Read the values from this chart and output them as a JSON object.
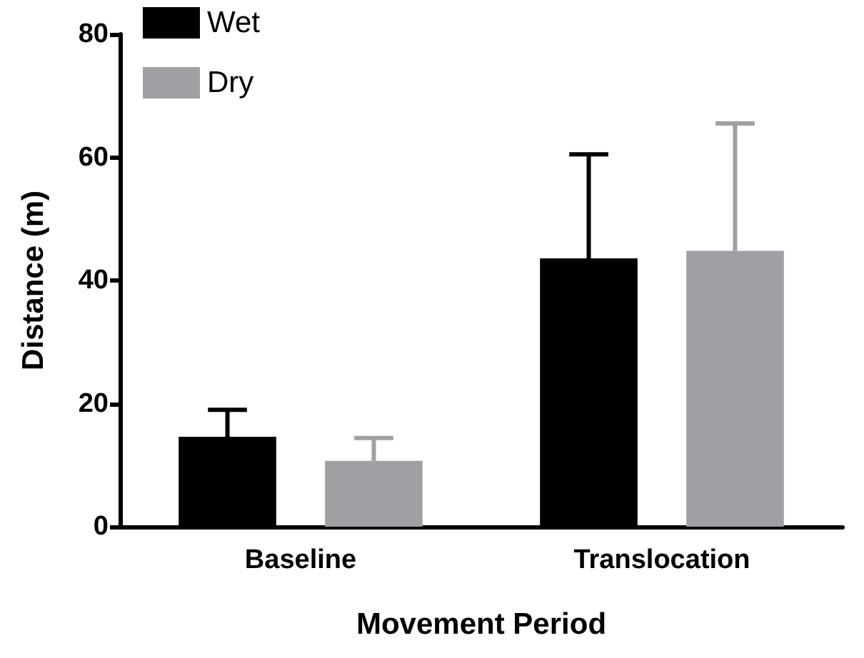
{
  "chart_data": {
    "type": "bar",
    "xlabel": "Movement Period",
    "ylabel": "Distance (m)",
    "categories": [
      "Baseline",
      "Translocation"
    ],
    "series": [
      {
        "name": "Wet",
        "color": "#000000",
        "values": [
          14.6,
          43.6
        ],
        "errors": [
          [
            14.6,
            19.0
          ],
          [
            43.6,
            60.5
          ]
        ]
      },
      {
        "name": "Dry",
        "color": "#a0a0a4",
        "values": [
          10.7,
          44.8
        ],
        "errors": [
          [
            10.7,
            14.4
          ],
          [
            44.8,
            65.5
          ]
        ]
      }
    ],
    "ylim": [
      0,
      80
    ],
    "yticks": [
      0,
      20,
      40,
      60,
      80
    ],
    "grid": false,
    "legend": "top left"
  }
}
